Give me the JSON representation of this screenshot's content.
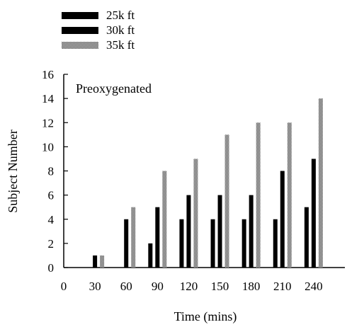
{
  "chart_data": {
    "type": "bar",
    "annotation": "Preoxygenated",
    "xlabel": "Time (mins)",
    "ylabel": "Subject Number",
    "x_ticks": [
      0,
      30,
      60,
      90,
      120,
      150,
      180,
      210,
      240
    ],
    "xlim": [
      0,
      270
    ],
    "ylim": [
      0,
      16
    ],
    "y_ticks": [
      0,
      2,
      4,
      6,
      8,
      10,
      12,
      14,
      16
    ],
    "categories": [
      30,
      60,
      90,
      120,
      150,
      180,
      210,
      240
    ],
    "series": [
      {
        "name": "25k ft",
        "color": "#000000",
        "pattern": "solid",
        "values": [
          null,
          null,
          2,
          4,
          4,
          4,
          4,
          5
        ]
      },
      {
        "name": "30k ft",
        "color": "#000000",
        "pattern": "solid",
        "values": [
          1,
          4,
          5,
          6,
          6,
          6,
          8,
          9
        ]
      },
      {
        "name": "35k ft",
        "color": "#9a9a9a",
        "pattern": "dotted",
        "values": [
          1,
          5,
          8,
          9,
          11,
          12,
          12,
          14
        ]
      }
    ],
    "grid": false,
    "legend_position": "top-left"
  }
}
